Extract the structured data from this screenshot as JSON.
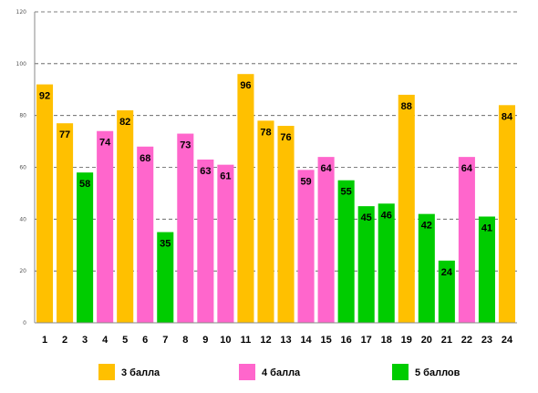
{
  "chart_data": {
    "type": "bar",
    "categories": [
      "1",
      "2",
      "3",
      "4",
      "5",
      "6",
      "7",
      "8",
      "9",
      "10",
      "11",
      "12",
      "13",
      "14",
      "15",
      "16",
      "17",
      "18",
      "19",
      "20",
      "21",
      "22",
      "23",
      "24"
    ],
    "values": [
      92,
      77,
      58,
      74,
      82,
      68,
      35,
      73,
      63,
      61,
      96,
      78,
      76,
      59,
      64,
      55,
      45,
      46,
      88,
      42,
      24,
      64,
      41,
      84
    ],
    "groups": [
      "3 балла",
      "3 балла",
      "5 баллов",
      "4 балла",
      "3 балла",
      "4 балла",
      "5 баллов",
      "4 балла",
      "4 балла",
      "4 балла",
      "3 балла",
      "3 балла",
      "3 балла",
      "4 балла",
      "4 балла",
      "5 баллов",
      "5 баллов",
      "5 баллов",
      "3 балла",
      "5 баллов",
      "5 баллов",
      "4 балла",
      "5 баллов",
      "3 балла"
    ],
    "ylim": [
      0,
      120
    ],
    "yticks": [
      0,
      20,
      40,
      60,
      80,
      100,
      120
    ],
    "grid": true,
    "legend": {
      "placement": "bottom",
      "entries": [
        {
          "label": "3 балла",
          "color": "#ffc000"
        },
        {
          "label": "4 балла",
          "color": "#ff66cc"
        },
        {
          "label": "5 баллов",
          "color": "#00cc00"
        }
      ]
    },
    "title": "",
    "xlabel": "",
    "ylabel": ""
  }
}
